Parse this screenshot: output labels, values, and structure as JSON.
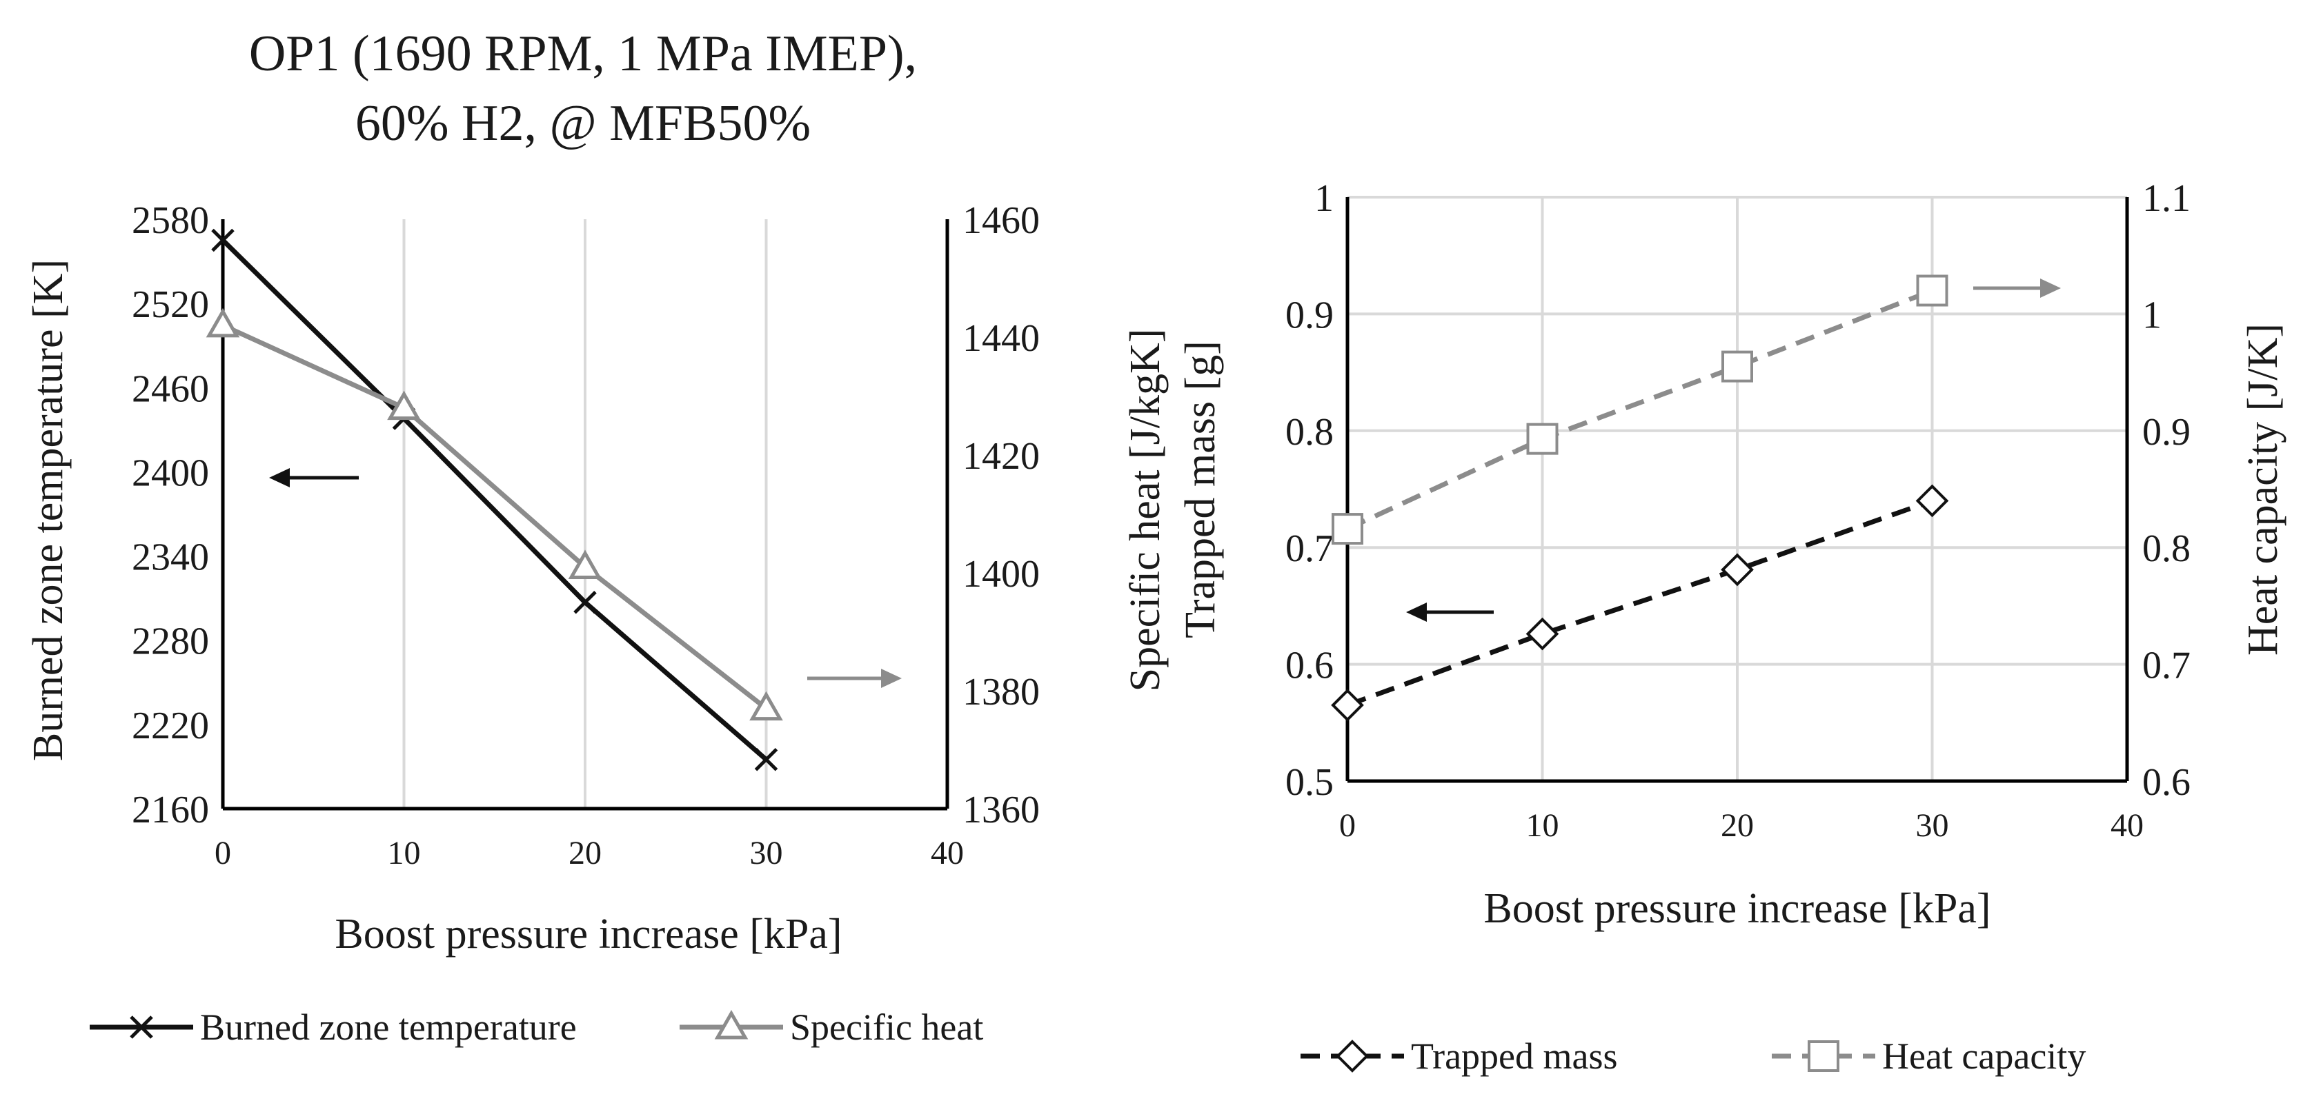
{
  "colors": {
    "black_series": "#111111",
    "gray_series": "#8c8c8c",
    "grid": "#d9d9d9",
    "text": "#1a1a1a"
  },
  "chart_data": [
    {
      "type": "line",
      "title_line1": "OP1 (1690 RPM, 1 MPa IMEP),",
      "title_line2": "60% H2, @ MFB50%",
      "xlabel": "Boost pressure increase  [kPa]",
      "ylabel": "Burned zone temperature [K]",
      "y2label": "Specific heat  [J/kgK]",
      "xlim": [
        0,
        40
      ],
      "ylim": [
        2160,
        2580
      ],
      "y2lim": [
        1360,
        1460
      ],
      "x_ticks": [
        "0",
        "10",
        "20",
        "30",
        "40"
      ],
      "y_ticks": [
        "2160",
        "2220",
        "2280",
        "2340",
        "2400",
        "2460",
        "2520",
        "2580"
      ],
      "y2_ticks": [
        "1360",
        "1380",
        "1400",
        "1420",
        "1440",
        "1460"
      ],
      "grid": "vertical",
      "legend_position": "bottom",
      "series": [
        {
          "name": "Burned zone temperature",
          "axis": "left",
          "marker": "x",
          "line_style": "solid",
          "color": "#111111",
          "x": [
            0,
            10,
            20,
            30
          ],
          "values": [
            2565,
            2438,
            2307,
            2195
          ]
        },
        {
          "name": "Specific heat",
          "axis": "right",
          "marker": "triangle",
          "line_style": "solid",
          "color": "#8c8c8c",
          "x": [
            0,
            10,
            20,
            30
          ],
          "values": [
            1442,
            1428,
            1401,
            1377
          ]
        }
      ]
    },
    {
      "type": "line",
      "xlabel": "Boost pressure increase  [kPa]",
      "ylabel": "Trapped  mass [g]",
      "y2label": "Heat capacity  [J/K]",
      "xlim": [
        0,
        40
      ],
      "ylim": [
        0.5,
        1
      ],
      "y2lim": [
        0.6,
        1.1
      ],
      "x_ticks": [
        "0",
        "10",
        "20",
        "30",
        "40"
      ],
      "y_ticks": [
        "0.5",
        "0.6",
        "0.7",
        "0.8",
        "0.9",
        "1"
      ],
      "y2_ticks": [
        "0.6",
        "0.7",
        "0.8",
        "0.9",
        "1",
        "1.1"
      ],
      "grid": "both",
      "legend_position": "bottom",
      "series": [
        {
          "name": "Trapped mass",
          "axis": "left",
          "marker": "diamond",
          "line_style": "dashed",
          "color": "#111111",
          "x": [
            0,
            10,
            20,
            30
          ],
          "values": [
            0.565,
            0.626,
            0.681,
            0.74
          ]
        },
        {
          "name": "Heat capacity",
          "axis": "right",
          "marker": "square",
          "line_style": "dashed",
          "color": "#8c8c8c",
          "x": [
            0,
            10,
            20,
            30
          ],
          "values": [
            0.816,
            0.893,
            0.955,
            1.02
          ]
        }
      ]
    }
  ]
}
